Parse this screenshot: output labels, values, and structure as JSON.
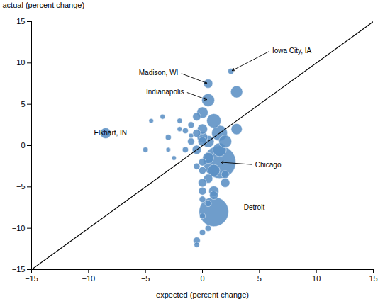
{
  "chart_data": {
    "type": "scatter",
    "xlabel": "expected (percent change)",
    "ylabel": "actual (percent change)",
    "color": "#5b8fc4",
    "xlim": [
      -15,
      15
    ],
    "ylim": [
      -15,
      15
    ],
    "xticks": [
      -15,
      -10,
      -5,
      0,
      5,
      10,
      15
    ],
    "yticks": [
      -15,
      -10,
      -5,
      0,
      5,
      10,
      15
    ],
    "x": [
      -8.5,
      -5.0,
      -3.5,
      -3.0,
      -2.5,
      -2.0,
      -1.5,
      -1.0,
      -1.0,
      -0.5,
      -0.5,
      -0.5,
      -0.5,
      0.0,
      0.0,
      0.0,
      0.0,
      0.0,
      0.0,
      0.0,
      0.0,
      0.5,
      0.5,
      0.5,
      0.5,
      0.5,
      0.5,
      1.0,
      1.0,
      1.0,
      1.0,
      1.5,
      1.5,
      2.0,
      2.0,
      2.5,
      3.0,
      3.0,
      -4.5,
      -3.0,
      0.0,
      -1.0,
      -2.0,
      0.5,
      1.0,
      2.0,
      1.5,
      0.0,
      -0.5,
      -1.5,
      -0.5,
      0.0
    ],
    "values": [
      1.5,
      -0.5,
      3.5,
      1.0,
      -1.5,
      3.0,
      -0.5,
      2.5,
      0.5,
      -12.0,
      1.5,
      -0.5,
      3.5,
      -4.5,
      -3.0,
      4.0,
      -2.0,
      0.5,
      2.0,
      -5.5,
      -6.5,
      -10.0,
      -4.0,
      5.5,
      7.5,
      -1.5,
      0.5,
      -8.0,
      3.0,
      -3.0,
      -5.5,
      -2.0,
      1.5,
      -4.5,
      0.5,
      9.0,
      6.5,
      2.0,
      3.0,
      -0.5,
      -8.5,
      1.2,
      2.0,
      -7.0,
      -6.0,
      -3.5,
      -0.5,
      1.0,
      -2.5,
      1.8,
      -11.5,
      -10.5
    ],
    "sizes": [
      120,
      30,
      25,
      35,
      22,
      28,
      38,
      42,
      50,
      30,
      65,
      85,
      68,
      75,
      55,
      130,
      58,
      85,
      105,
      63,
      42,
      38,
      85,
      170,
      85,
      125,
      148,
      900,
      210,
      148,
      105,
      1100,
      255,
      85,
      170,
      35,
      148,
      125,
      22,
      22,
      34,
      25,
      25,
      42,
      75,
      63,
      190,
      118,
      42,
      34,
      50,
      38
    ],
    "diagonal": {
      "x": [
        -15,
        15
      ],
      "y": [
        -15,
        15
      ]
    },
    "annotations": [
      {
        "text": "Iowa City, IA",
        "x": 2.5,
        "y": 9.0,
        "tx": 6.0,
        "ty": 11.5,
        "align": "left",
        "arrow": true
      },
      {
        "text": "Madison, WI",
        "x": 0.5,
        "y": 7.5,
        "tx": -2.0,
        "ty": 8.8,
        "align": "right",
        "arrow": true
      },
      {
        "text": "Indianapolis",
        "x": 0.5,
        "y": 5.5,
        "tx": -1.5,
        "ty": 6.5,
        "align": "right",
        "arrow": true
      },
      {
        "text": "Elkhart, IN",
        "x": -8.5,
        "y": 1.5,
        "tx": -6.5,
        "ty": 1.5,
        "align": "right",
        "arrow": false
      },
      {
        "text": "Chicago",
        "x": 1.5,
        "y": -2.0,
        "tx": 4.5,
        "ty": -2.3,
        "align": "left",
        "arrow": true
      },
      {
        "text": "Detroit",
        "x": 1.0,
        "y": -8.0,
        "tx": 3.5,
        "ty": -7.5,
        "align": "left",
        "arrow": false
      }
    ]
  }
}
